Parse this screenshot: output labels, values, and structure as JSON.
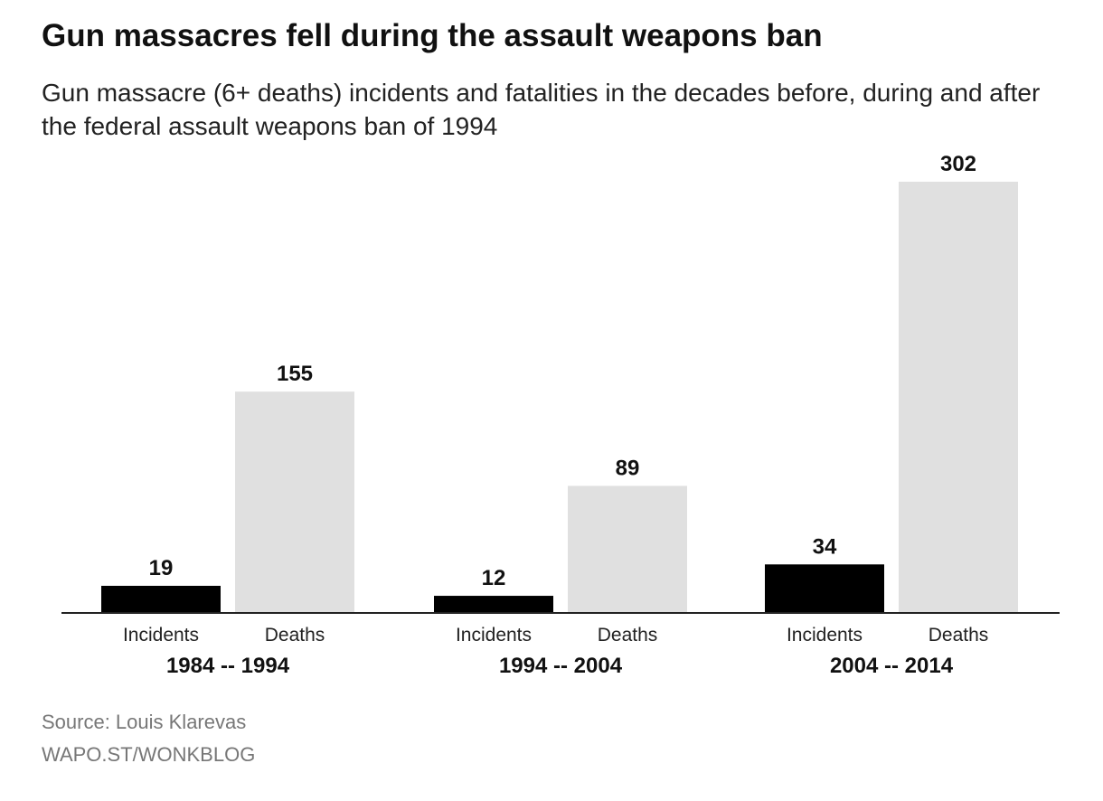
{
  "chart_data": {
    "type": "bar",
    "title": "Gun massacres fell during the assault weapons ban",
    "subtitle": "Gun massacre (6+ deaths) incidents and fatalities in the decades before, during and after the federal assault weapons ban of 1994",
    "categories": [
      "1984 -- 1994",
      "1994 -- 2004",
      "2004 -- 2014"
    ],
    "series": [
      {
        "name": "Incidents",
        "values": [
          19,
          12,
          34
        ],
        "color": "#000000"
      },
      {
        "name": "Deaths",
        "values": [
          155,
          89,
          302
        ],
        "color": "#e0e0e0"
      }
    ],
    "ylim": [
      0,
      302
    ],
    "xlabel": "",
    "ylabel": "",
    "grid": false,
    "legend": "none"
  },
  "footer": {
    "source": "Source: Louis Klarevas",
    "credit": "WAPO.ST/WONKBLOG"
  }
}
